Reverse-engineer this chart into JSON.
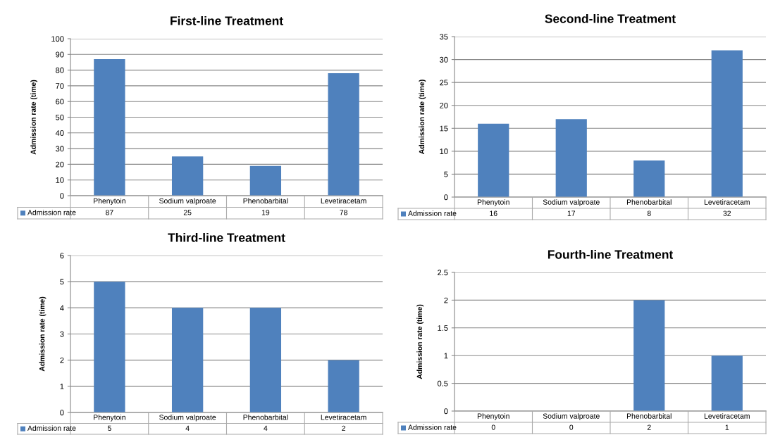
{
  "chart_data": [
    {
      "type": "bar",
      "title": "First-line Treatment",
      "ylabel": "Admission rate (time)",
      "categories": [
        "Phenytoin",
        "Sodium valproate",
        "Phenobarbital",
        "Levetiracetam"
      ],
      "series": [
        {
          "name": "Admission rate",
          "color": "#4f81bd",
          "values": [
            87,
            25,
            19,
            78
          ]
        }
      ],
      "ylim": [
        0,
        100
      ],
      "yticks": [
        0,
        10,
        20,
        30,
        40,
        50,
        60,
        70,
        80,
        90,
        100
      ],
      "grid": "y",
      "data_labels": true
    },
    {
      "type": "bar",
      "title": "Second-line Treatment",
      "ylabel": "Admission rate (time)",
      "categories": [
        "Phenytoin",
        "Sodium valproate",
        "Phenobarbital",
        "Levetiracetam"
      ],
      "series": [
        {
          "name": "Admission rate",
          "color": "#4f81bd",
          "values": [
            16,
            17,
            8,
            32
          ]
        }
      ],
      "ylim": [
        0,
        35
      ],
      "yticks": [
        0,
        5,
        10,
        15,
        20,
        25,
        30,
        35
      ],
      "grid": "y",
      "data_labels": true
    },
    {
      "type": "bar",
      "title": "Third-line Treatment",
      "ylabel": "Admission rate (time)",
      "categories": [
        "Phenytoin",
        "Sodium valproate",
        "Phenobarbital",
        "Levetiracetam"
      ],
      "series": [
        {
          "name": "Admission rate",
          "color": "#4f81bd",
          "values": [
            5,
            4,
            4,
            2
          ]
        }
      ],
      "ylim": [
        0,
        6
      ],
      "yticks": [
        0,
        1,
        2,
        3,
        4,
        5,
        6
      ],
      "grid": "y",
      "data_labels": true
    },
    {
      "type": "bar",
      "title": "Fourth-line Treatment",
      "ylabel": "Admission rate (time)",
      "categories": [
        "Phenytoin",
        "Sodium valproate",
        "Phenobarbital",
        "Levetiracetam"
      ],
      "series": [
        {
          "name": "Admission rate",
          "color": "#4f81bd",
          "values": [
            0,
            0,
            2,
            1
          ]
        }
      ],
      "ylim": [
        0,
        2.5
      ],
      "yticks": [
        0,
        0.5,
        1,
        1.5,
        2,
        2.5
      ],
      "grid": "y",
      "data_labels": true
    }
  ]
}
